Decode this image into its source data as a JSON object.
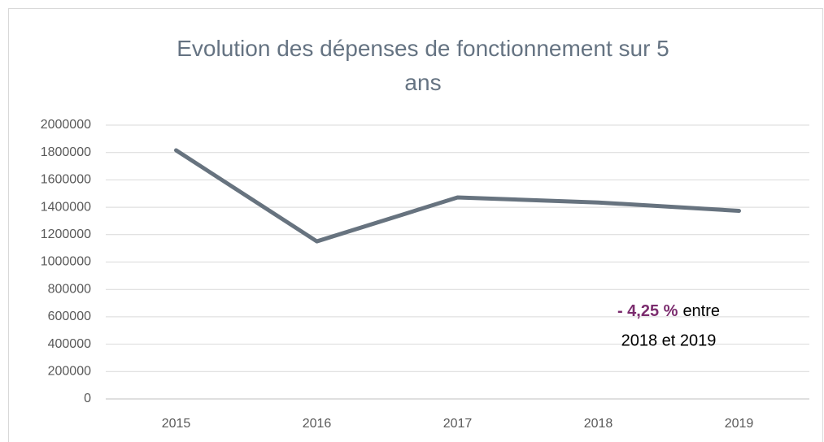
{
  "chart_data": {
    "type": "line",
    "title": "Evolution des dépenses de fonctionnement sur 5 ans",
    "categories": [
      "2015",
      "2016",
      "2017",
      "2018",
      "2019"
    ],
    "series": [
      {
        "name": "Dépenses de fonctionnement",
        "color": "#67737f",
        "values": [
          1816000,
          1151000,
          1472000,
          1435000,
          1374000
        ]
      }
    ],
    "ylim": [
      0,
      2000000
    ],
    "yticks": [
      0,
      200000,
      400000,
      600000,
      800000,
      1000000,
      1200000,
      1400000,
      1600000,
      1800000,
      2000000
    ],
    "grid": true,
    "annotation": {
      "highlight": "- 4,25 %",
      "text": "entre",
      "line2": "2018 et 2019",
      "color": "#7b2c6e"
    }
  }
}
